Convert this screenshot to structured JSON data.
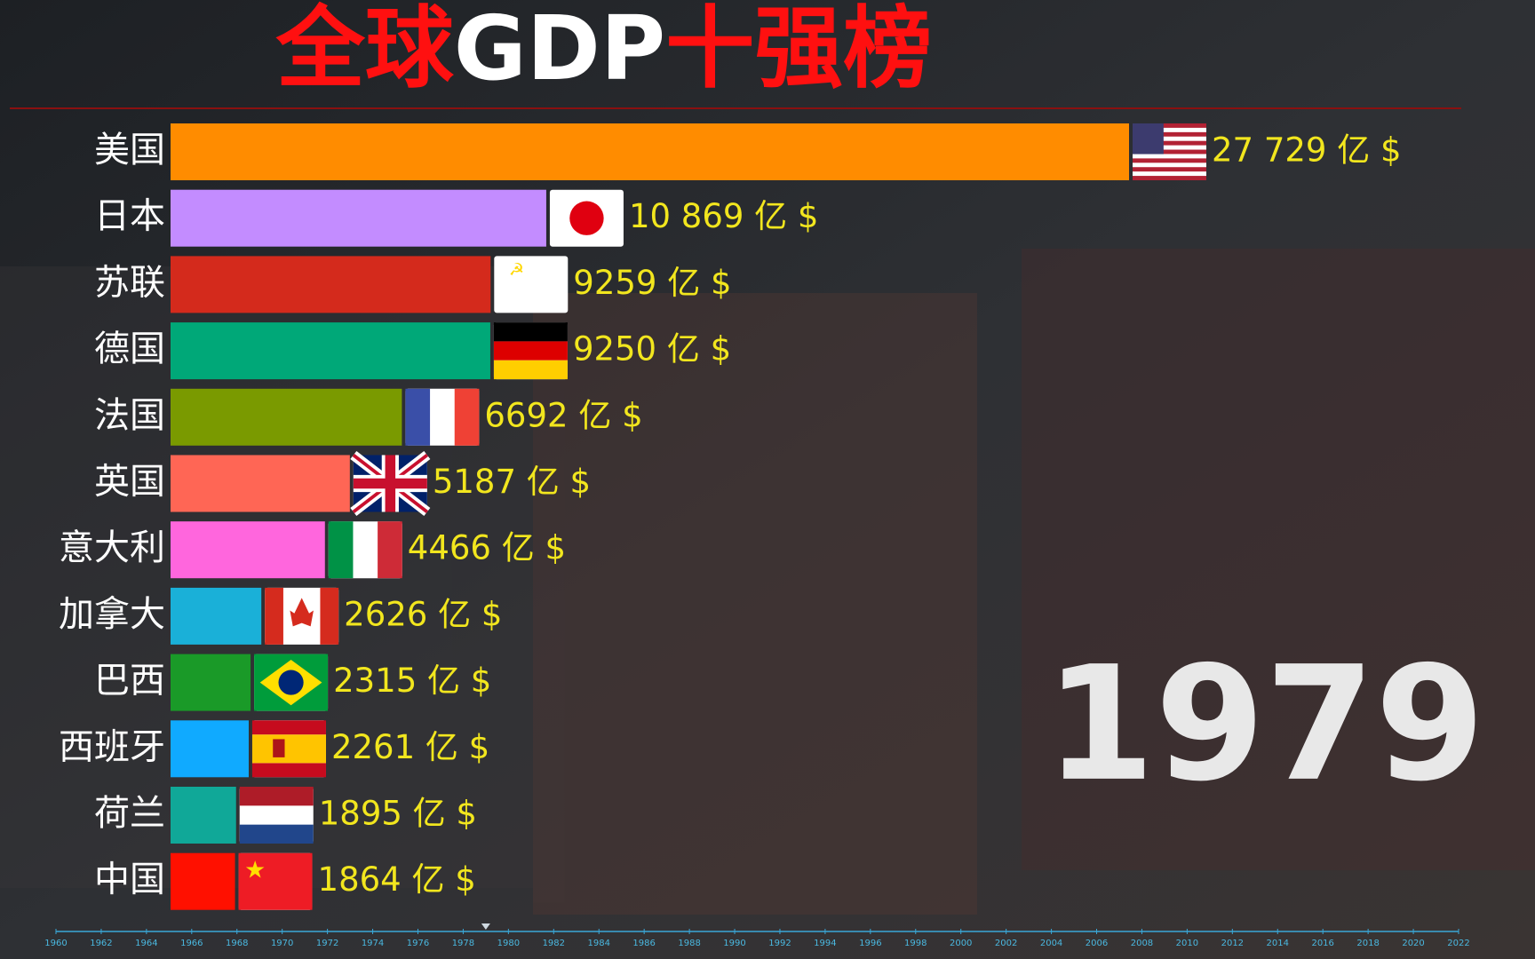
{
  "chart_data": {
    "type": "bar",
    "title_parts": [
      {
        "text": "全球",
        "color": "#ff1010"
      },
      {
        "text": "GDP",
        "color": "#ffffff"
      },
      {
        "text": "十强榜",
        "color": "#ff1010"
      }
    ],
    "categories": [
      "美国",
      "日本",
      "苏联",
      "德国",
      "法国",
      "英国",
      "意大利",
      "加拿大",
      "巴西",
      "西班牙",
      "荷兰",
      "中国"
    ],
    "values": [
      27729,
      10869,
      9259,
      9250,
      6692,
      5187,
      4466,
      2626,
      2315,
      2261,
      1895,
      1864
    ],
    "value_labels": [
      "27 729 亿 $",
      "10 869 亿 $",
      "9259 亿 $",
      "9250 亿 $",
      "6692 亿 $",
      "5187 亿 $",
      "4466 亿 $",
      "2626 亿 $",
      "2315 亿 $",
      "2261 亿 $",
      "1895 亿 $",
      "1864 亿 $"
    ],
    "colors": [
      "#ff8c00",
      "#c38cff",
      "#d42a1c",
      "#00a878",
      "#7a9a00",
      "#ff6655",
      "#ff66dd",
      "#1ab0d8",
      "#1a9a28",
      "#10aaff",
      "#10a898",
      "#ff1000"
    ],
    "year": 1979,
    "timeline": {
      "xlim": [
        1960,
        2022
      ],
      "xticks": [
        1960,
        1962,
        1964,
        1966,
        1968,
        1970,
        1972,
        1974,
        1976,
        1978,
        1980,
        1982,
        1984,
        1986,
        1988,
        1990,
        1992,
        1994,
        1996,
        1998,
        2000,
        2002,
        2004,
        2006,
        2008,
        2010,
        2012,
        2014,
        2016,
        2018,
        2020,
        2022
      ]
    }
  }
}
